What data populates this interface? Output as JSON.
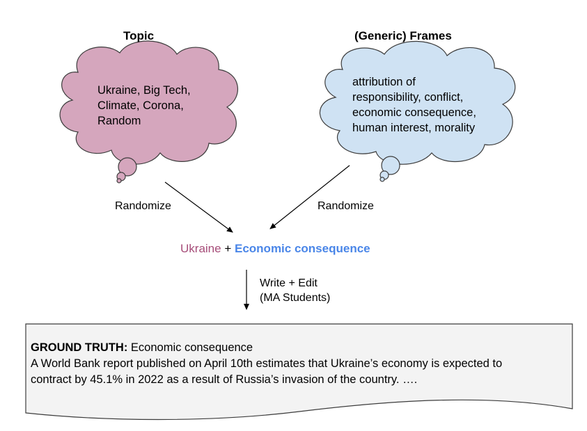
{
  "topic": {
    "heading": "Topic",
    "lines": [
      "Ukraine, Big Tech,",
      "Climate, Corona,",
      "Random"
    ],
    "fill": "#d5a6bd"
  },
  "frames": {
    "heading": "(Generic) Frames",
    "lines": [
      "attribution of",
      "responsibility, conflict,",
      "economic consequence,",
      "human interest, morality"
    ],
    "fill": "#cfe2f3"
  },
  "randomize_left": "Randomize",
  "randomize_right": "Randomize",
  "combination": {
    "topic": "Ukraine",
    "plus": "+",
    "frame": "Economic consequence"
  },
  "write_edit": {
    "line1": "Write + Edit",
    "line2": "(MA Students)"
  },
  "document": {
    "label": "GROUND TRUTH:",
    "label_value": "Economic consequence",
    "line1": "A World Bank report published on April 10th estimates that Ukraine’s economy is expected to",
    "line2": "contract by 45.1% in 2022 as a result of Russia’s invasion of the country. ….",
    "fill": "#f3f3f3"
  }
}
